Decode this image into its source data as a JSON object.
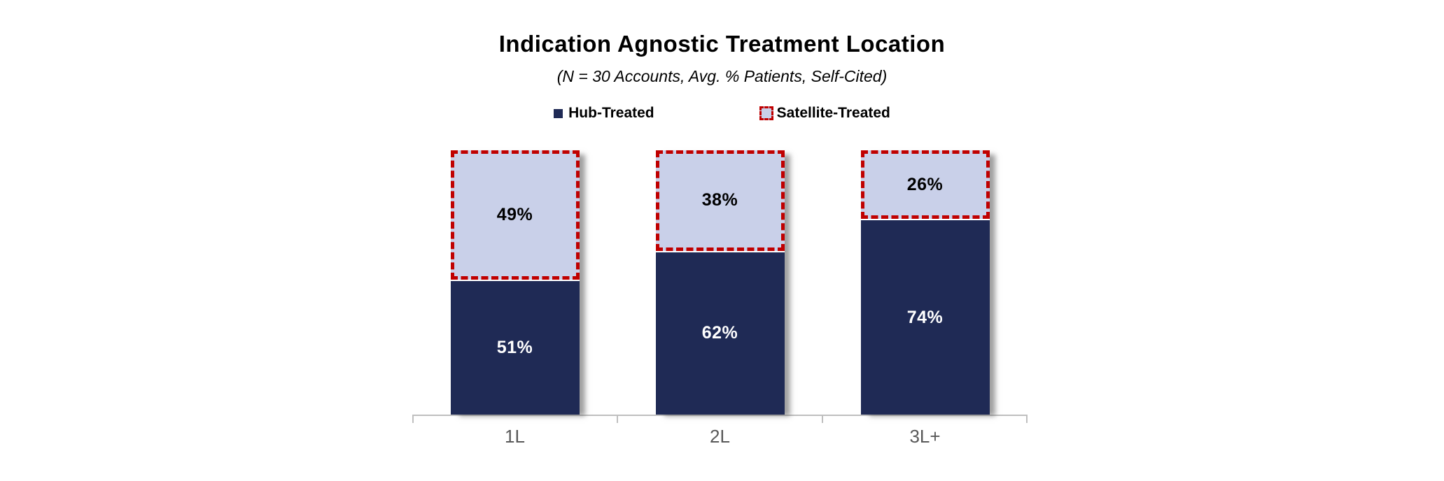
{
  "title": "Indication Agnostic Treatment Location",
  "subtitle": "(N = 30 Accounts, Avg. % Patients, Self-Cited)",
  "legend": {
    "hub_label": "Hub-Treated",
    "satellite_label": "Satellite-Treated"
  },
  "colors": {
    "hub_fill": "#1F2A55",
    "satellite_fill": "#C9D0E9",
    "satellite_border": "#C00000",
    "axis_line": "#BFBFBF",
    "category_label": "#595959",
    "hub_value_text": "#FFFFFF",
    "satellite_value_text": "#000000"
  },
  "chart_data": {
    "type": "bar",
    "stacked": true,
    "percent_stacked": true,
    "title": "Indication Agnostic Treatment Location",
    "subtitle": "(N = 30 Accounts, Avg. % Patients, Self-Cited)",
    "categories": [
      "1L",
      "2L",
      "3L+"
    ],
    "series": [
      {
        "name": "Hub-Treated",
        "values": [
          51,
          62,
          74
        ],
        "color": "#1F2A55"
      },
      {
        "name": "Satellite-Treated",
        "values": [
          49,
          38,
          26
        ],
        "color": "#C9D0E9"
      }
    ],
    "value_labels": {
      "hub": [
        "51%",
        "62%",
        "74%"
      ],
      "satellite": [
        "49%",
        "38%",
        "26%"
      ]
    },
    "ylim": [
      0,
      100
    ],
    "grid": false,
    "y_axis_visible": false,
    "legend_position": "top"
  }
}
